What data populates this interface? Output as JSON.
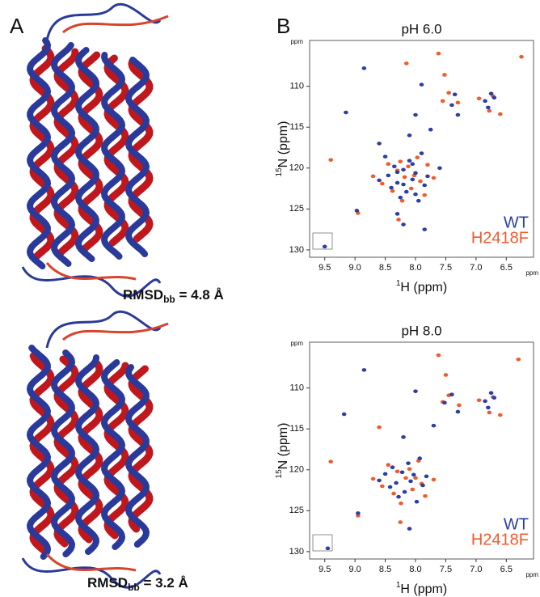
{
  "panel_labels": [
    "A",
    "B"
  ],
  "rmsd_labels": [
    {
      "main": "RMSD",
      "sub": "bb",
      "rest": " = 4.8 Å"
    },
    {
      "main": "RMSD",
      "sub": "bb",
      "rest": " = 3.2 Å"
    }
  ],
  "chart_data": [
    {
      "type": "scatter",
      "title": "pH 6.0",
      "xlabel": {
        "superscript": "1",
        "text": "H (ppm)"
      },
      "ylabel": {
        "superscript": "15",
        "text": "N (ppm)"
      },
      "xunit": "ppm",
      "yunit": "ppm",
      "xlim": [
        9.75,
        6.05
      ],
      "ylim": [
        130.9,
        104.4
      ],
      "xticks": [
        9.5,
        {
          "value": 9,
          "label": "9.0"
        },
        8.5,
        {
          "value": 8,
          "label": "8.0"
        },
        7.5,
        {
          "value": 7,
          "label": "7.0"
        },
        6.5
      ],
      "yticks": [
        110,
        115,
        120,
        125,
        130
      ],
      "grid": false,
      "legend": "lower right",
      "series": [
        {
          "name": "WT",
          "color": "#2b3fa6",
          "x": [
            9.5,
            9.15,
            8.97,
            8.85,
            8.6,
            8.5,
            8.45,
            8.4,
            8.35,
            8.3,
            8.25,
            8.2,
            8.15,
            8.1,
            8.05,
            8.0,
            7.95,
            7.9,
            7.85,
            7.8,
            8.3,
            8.2,
            8.1,
            8.0,
            7.9,
            7.75,
            7.6,
            7.4,
            7.35,
            7.3,
            6.85,
            6.8,
            6.75,
            6.7,
            8.2,
            8.3,
            8.05,
            8.6,
            8.0,
            7.85
          ],
          "values": [
            129.6,
            113.2,
            125.2,
            107.8,
            121.5,
            118.6,
            120.9,
            122.4,
            119.8,
            121.8,
            123.6,
            120.2,
            122.9,
            119.1,
            121.4,
            120.6,
            124.0,
            118.2,
            122.1,
            121.0,
            125.6,
            126.9,
            116.0,
            113.5,
            109.8,
            115.3,
            120.0,
            112.3,
            111.0,
            113.5,
            111.8,
            112.6,
            110.9,
            111.4,
            122.0,
            120.5,
            119.5,
            117.0,
            123.2,
            127.5
          ]
        },
        {
          "name": "H2418F",
          "color": "#f25a2c",
          "x": [
            9.4,
            8.95,
            8.7,
            8.55,
            8.45,
            8.38,
            8.3,
            8.22,
            8.18,
            8.12,
            8.07,
            8.02,
            7.97,
            7.92,
            7.85,
            7.8,
            8.28,
            8.15,
            7.62,
            7.52,
            7.45,
            7.3,
            6.95,
            6.78,
            6.72,
            6.6,
            6.25,
            7.55,
            7.7,
            8.25
          ],
          "values": [
            119.0,
            125.5,
            121.0,
            121.9,
            119.5,
            122.8,
            120.3,
            124.0,
            121.1,
            119.8,
            122.5,
            120.9,
            118.7,
            121.6,
            123.3,
            119.6,
            126.3,
            107.2,
            106.0,
            108.6,
            110.8,
            112.0,
            111.5,
            113.0,
            111.2,
            113.4,
            106.4,
            111.8,
            121.2,
            119.2
          ]
        }
      ]
    },
    {
      "type": "scatter",
      "title": "pH 8.0",
      "xlabel": {
        "superscript": "1",
        "text": "H (ppm)"
      },
      "ylabel": {
        "superscript": "15",
        "text": "N (ppm)"
      },
      "xunit": "ppm",
      "yunit": "ppm",
      "xlim": [
        9.75,
        6.05
      ],
      "ylim": [
        130.9,
        104.4
      ],
      "xticks": [
        9.5,
        {
          "value": 9,
          "label": "9.0"
        },
        8.5,
        {
          "value": 8,
          "label": "8.0"
        },
        7.5,
        {
          "value": 7,
          "label": "7.0"
        },
        6.5
      ],
      "yticks": [
        110,
        115,
        120,
        125,
        130
      ],
      "grid": false,
      "legend": "lower right",
      "series": [
        {
          "name": "WT",
          "color": "#2b3fa6",
          "x": [
            9.45,
            9.18,
            8.95,
            8.85,
            8.6,
            8.5,
            8.42,
            8.38,
            8.32,
            8.28,
            8.22,
            8.18,
            8.12,
            8.08,
            8.03,
            7.98,
            7.93,
            7.88,
            7.82,
            7.7,
            7.52,
            7.4,
            7.3,
            6.85,
            6.8,
            6.75,
            6.7,
            8.2,
            8.1,
            8.0
          ],
          "values": [
            129.6,
            113.2,
            125.3,
            107.8,
            121.3,
            120.5,
            122.1,
            119.7,
            121.6,
            123.3,
            120.3,
            122.7,
            119.2,
            121.4,
            120.6,
            123.9,
            118.6,
            121.9,
            120.8,
            114.6,
            111.8,
            110.8,
            112.9,
            111.6,
            112.4,
            110.6,
            111.2,
            116.0,
            127.2,
            110.4
          ]
        },
        {
          "name": "H2418F",
          "color": "#f25a2c",
          "x": [
            9.4,
            8.95,
            8.7,
            8.55,
            8.45,
            8.36,
            8.3,
            8.24,
            8.16,
            8.1,
            8.05,
            8.0,
            7.95,
            7.9,
            7.84,
            7.62,
            7.5,
            7.45,
            7.28,
            6.95,
            6.78,
            6.72,
            6.6,
            6.3,
            8.25,
            7.55,
            8.6,
            7.7
          ],
          "values": [
            119.0,
            125.6,
            121.1,
            122.0,
            119.4,
            122.9,
            120.2,
            124.1,
            121.0,
            119.9,
            122.4,
            121.0,
            118.9,
            121.7,
            123.2,
            106.0,
            108.4,
            110.9,
            112.1,
            111.5,
            113.0,
            111.1,
            113.3,
            106.5,
            126.4,
            111.7,
            114.8,
            121.2
          ]
        }
      ]
    }
  ]
}
